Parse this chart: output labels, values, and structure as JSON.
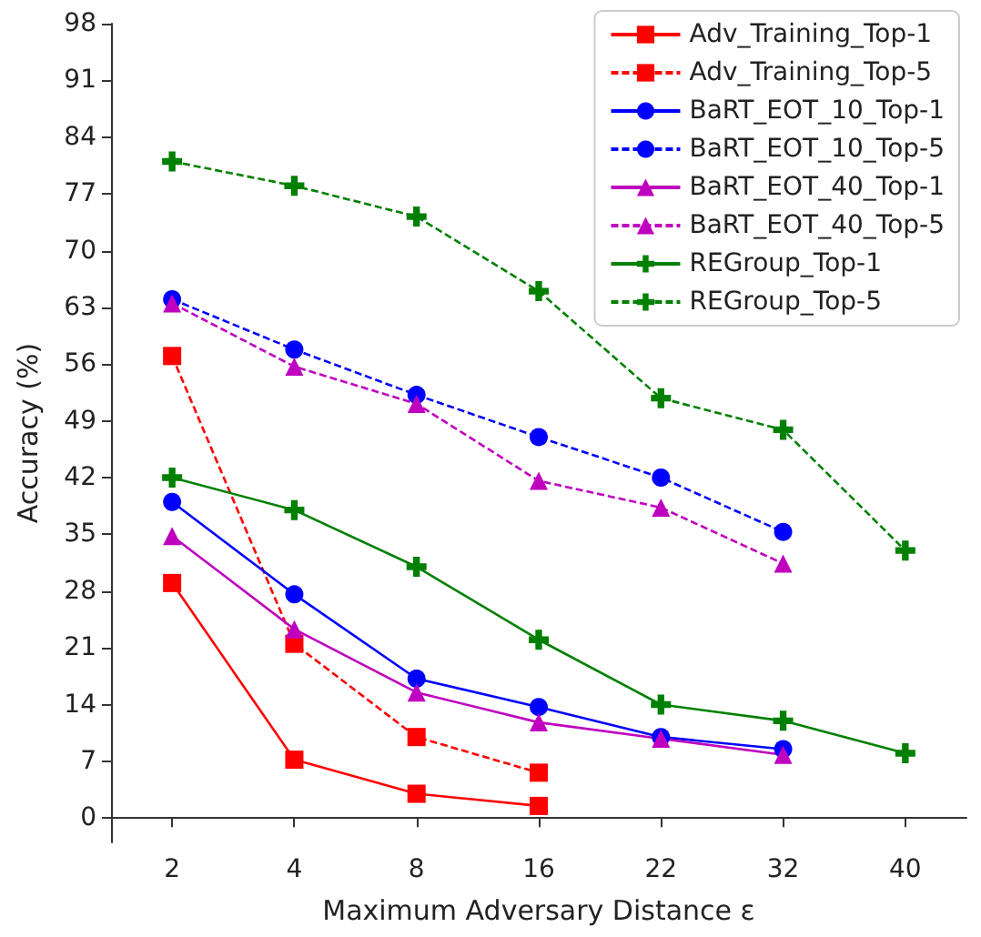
{
  "chart_data": {
    "type": "line",
    "xlabel": "Maximum Adversary Distance ε",
    "ylabel": "Accuracy (%)",
    "categories": [
      "2",
      "4",
      "8",
      "16",
      "22",
      "32",
      "40"
    ],
    "ylim": [
      -3,
      98
    ],
    "yticks": [
      0,
      7,
      14,
      21,
      28,
      35,
      42,
      49,
      56,
      63,
      70,
      77,
      84,
      91,
      98
    ],
    "grid": false,
    "legend": "top right",
    "series": [
      {
        "name": "Adv_Training_Top-1",
        "color": "#ff0000",
        "marker": "square",
        "line_style": "solid",
        "values": [
          29,
          7.2,
          3,
          1.5,
          null,
          null,
          null
        ]
      },
      {
        "name": "Adv_Training_Top-5",
        "color": "#ff0000",
        "marker": "square",
        "line_style": "dashed",
        "values": [
          57,
          21.5,
          10,
          5.6,
          null,
          null,
          null
        ]
      },
      {
        "name": "BaRT_EOT_10_Top-1",
        "color": "#0000ff",
        "marker": "circle",
        "line_style": "solid",
        "values": [
          39,
          27.6,
          17.2,
          13.7,
          10,
          8.5,
          null
        ]
      },
      {
        "name": "BaRT_EOT_10_Top-5",
        "color": "#0000ff",
        "marker": "circle",
        "line_style": "dashed",
        "values": [
          64,
          57.8,
          52.2,
          47,
          42,
          35.3,
          null
        ]
      },
      {
        "name": "BaRT_EOT_40_Top-1",
        "color": "#bf00bf",
        "marker": "triangle",
        "line_style": "solid",
        "values": [
          34.8,
          23.3,
          15.5,
          11.8,
          9.8,
          7.8,
          null
        ]
      },
      {
        "name": "BaRT_EOT_40_Top-5",
        "color": "#bf00bf",
        "marker": "triangle",
        "line_style": "dashed",
        "values": [
          63.5,
          55.7,
          51.1,
          41.6,
          38.3,
          31.4,
          null
        ]
      },
      {
        "name": "REGroup_Top-1",
        "color": "#008000",
        "marker": "cross",
        "line_style": "solid",
        "values": [
          42,
          38,
          31,
          22,
          14,
          12,
          8
        ]
      },
      {
        "name": "REGroup_Top-5",
        "color": "#008000",
        "marker": "cross",
        "line_style": "dashed",
        "values": [
          81,
          78,
          74.2,
          65,
          51.8,
          47.9,
          33
        ]
      }
    ]
  }
}
